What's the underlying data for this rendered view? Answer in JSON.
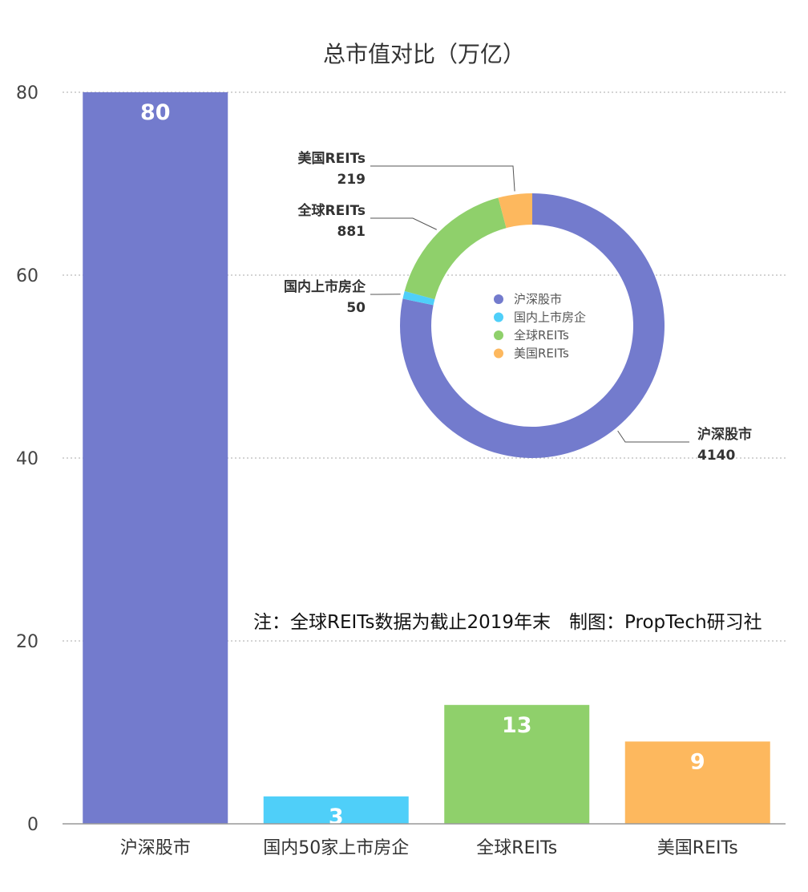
{
  "title": "总市值对比（万亿）",
  "note": "注：全球REITs数据为截止2019年末　制图：PropTech研习社",
  "chart_data": [
    {
      "type": "bar",
      "title": "总市值对比（万亿）",
      "categories": [
        "沪深股市",
        "国内50家上市房企",
        "全球REITs",
        "美国REITs"
      ],
      "values": [
        80,
        3,
        13,
        9
      ],
      "colors": [
        "#737bcd",
        "#4fcff9",
        "#8fd06b",
        "#fdb85e"
      ],
      "ylim": [
        0,
        80
      ],
      "yticks": [
        0,
        20,
        40,
        60,
        80
      ],
      "grid": true,
      "data_labels": true
    },
    {
      "type": "pie",
      "subtype": "donut",
      "categories": [
        "沪深股市",
        "国内上市房企",
        "全球REITs",
        "美国REITs"
      ],
      "values": [
        4140,
        50,
        881,
        219
      ],
      "colors": [
        "#737bcd",
        "#4fcff9",
        "#8fd06b",
        "#fdb85e"
      ],
      "legend": "center"
    }
  ]
}
